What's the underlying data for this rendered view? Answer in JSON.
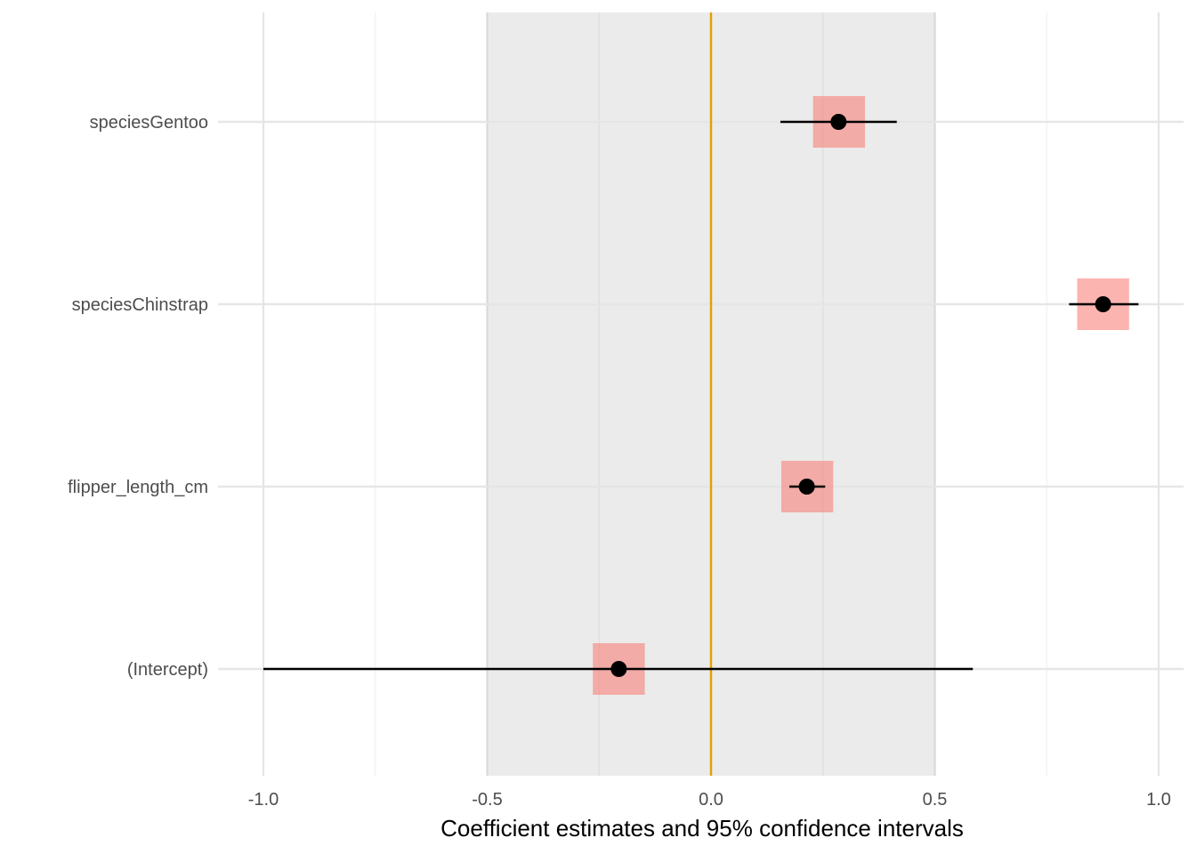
{
  "chart_data": {
    "type": "coefficient-plot",
    "title": "",
    "xlabel": "Coefficient estimates and 95% confidence intervals",
    "ylabel": "",
    "xlim": [
      -1.0,
      1.05
    ],
    "x_ticks": [
      -1.0,
      -0.5,
      0.0,
      0.5,
      1.0
    ],
    "x_tick_labels": [
      "-1.0",
      "-0.5",
      "0.0",
      "0.5",
      "1.0"
    ],
    "shaded_region": [
      -0.5,
      0.5
    ],
    "reference_line": 0.0,
    "grid": true,
    "terms": [
      {
        "name": "speciesGentoo",
        "estimate": 0.285,
        "ci": [
          0.155,
          0.415
        ],
        "se_band": [
          0.228,
          0.344
        ]
      },
      {
        "name": "speciesChinstrap",
        "estimate": 0.876,
        "ci": [
          0.8,
          0.955
        ],
        "se_band": [
          0.818,
          0.934
        ]
      },
      {
        "name": "flipper_length_cm",
        "estimate": 0.214,
        "ci": [
          0.175,
          0.255
        ],
        "se_band": [
          0.157,
          0.273
        ]
      },
      {
        "name": "(Intercept)",
        "estimate": -0.206,
        "ci": [
          -1.0,
          0.585
        ],
        "se_band": [
          -0.264,
          -0.148
        ]
      }
    ],
    "colors": {
      "panel_background": "#ebebeb",
      "gridline_major": "#e5e5e5",
      "gridline_major_shaded": "#d9d9d9",
      "gridline_minor": "#f0f0f0",
      "gridline_minor_shaded": "#dedede",
      "reference_line": "#e69f00",
      "band_fill": "#f8766d",
      "point": "#000000",
      "ci_line": "#000000"
    }
  }
}
